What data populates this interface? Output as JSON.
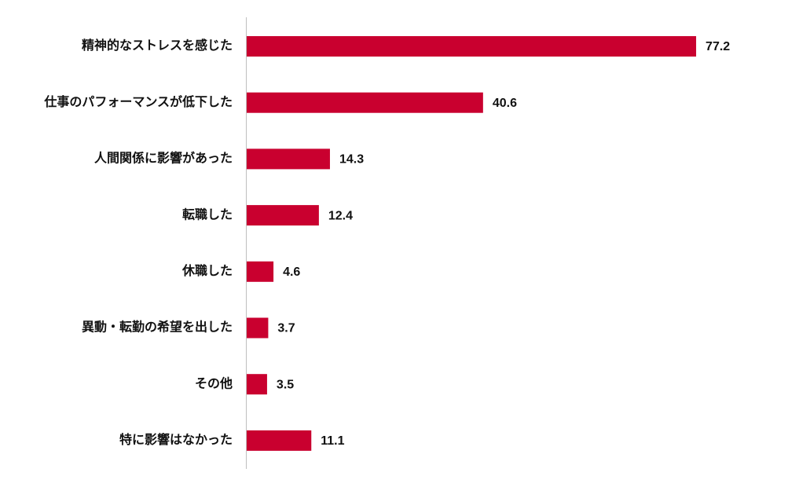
{
  "chart_data": {
    "type": "hbar",
    "categories": [
      "精神的なストレスを感じた",
      "仕事のパフォーマンスが低下した",
      "人間関係に影響があった",
      "転職した",
      "休職した",
      "異動・転勤の希望を出した",
      "その他",
      "特に影響はなかった"
    ],
    "values": [
      77.2,
      40.6,
      14.3,
      12.4,
      4.6,
      3.7,
      3.5,
      11.1
    ],
    "color": "#c9002f"
  }
}
